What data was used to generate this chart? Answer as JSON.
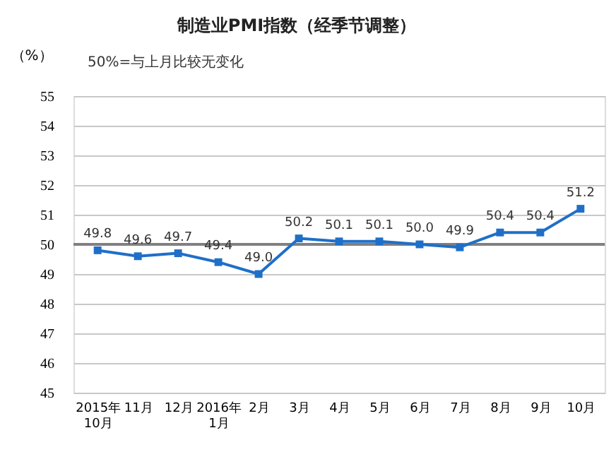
{
  "chart_data": {
    "type": "line",
    "title": "制造业PMI指数（经季节调整）",
    "ylabel": "（%）",
    "annotations": [
      "50%=与上月比较无变化"
    ],
    "categories": [
      "2015年\n10月",
      "11月",
      "12月",
      "2016年\n1月",
      "2月",
      "3月",
      "4月",
      "5月",
      "6月",
      "7月",
      "8月",
      "9月",
      "10月"
    ],
    "series": [
      {
        "color": "#1f6fc8",
        "values": [
          49.8,
          49.6,
          49.7,
          49.4,
          49.0,
          50.2,
          50.1,
          50.1,
          50.0,
          49.9,
          50.4,
          50.4,
          51.2
        ]
      }
    ],
    "ylim": [
      45,
      55
    ],
    "yticks": [
      45,
      46,
      47,
      48,
      49,
      50,
      51,
      52,
      53,
      54,
      55
    ],
    "ref_lines": [
      {
        "axis": "y",
        "value": 50,
        "color": "#808080"
      }
    ],
    "value_labels": [
      "49.8",
      "49.6",
      "49.7",
      "49.4",
      "49.0",
      "50.2",
      "50.1",
      "50.1",
      "50.0",
      "49.9",
      "50.4",
      "50.4",
      "51.2"
    ],
    "grid": "y",
    "marker": "square",
    "line_style": "solid"
  }
}
